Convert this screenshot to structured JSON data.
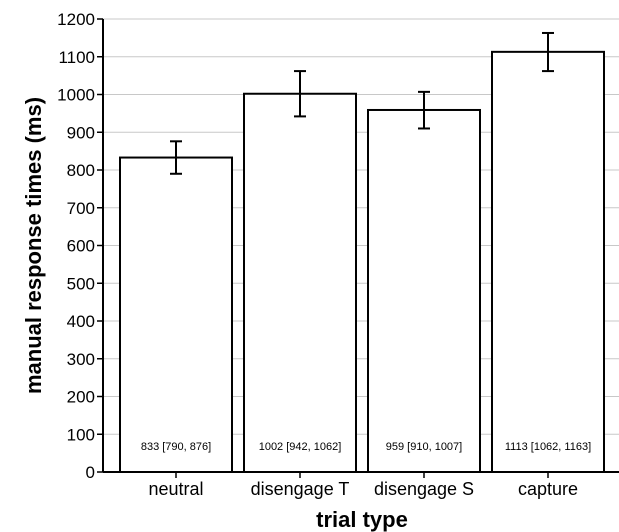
{
  "chart_data": {
    "type": "bar",
    "categories": [
      "neutral",
      "disengage T",
      "disengage S",
      "capture"
    ],
    "values": [
      833,
      1002,
      959,
      1113
    ],
    "ci_lower": [
      790,
      942,
      910,
      1062
    ],
    "ci_upper": [
      876,
      1062,
      1007,
      1163
    ],
    "data_labels": [
      "833 [790, 876]",
      "1002 [942, 1062]",
      "959 [910, 1007]",
      "1113 [1062, 1163]"
    ],
    "xlabel": "trial type",
    "ylabel": "manual response times (ms)",
    "ylim": [
      0,
      1200
    ],
    "yticks": [
      0,
      100,
      200,
      300,
      400,
      500,
      600,
      700,
      800,
      900,
      1000,
      1100,
      1200
    ],
    "grid": "horizontal",
    "error_bars": true,
    "colors": {
      "bar_fill": "#ffffff",
      "bar_stroke": "#000000",
      "grid": "#c8c8c8",
      "axis": "#000000"
    }
  }
}
